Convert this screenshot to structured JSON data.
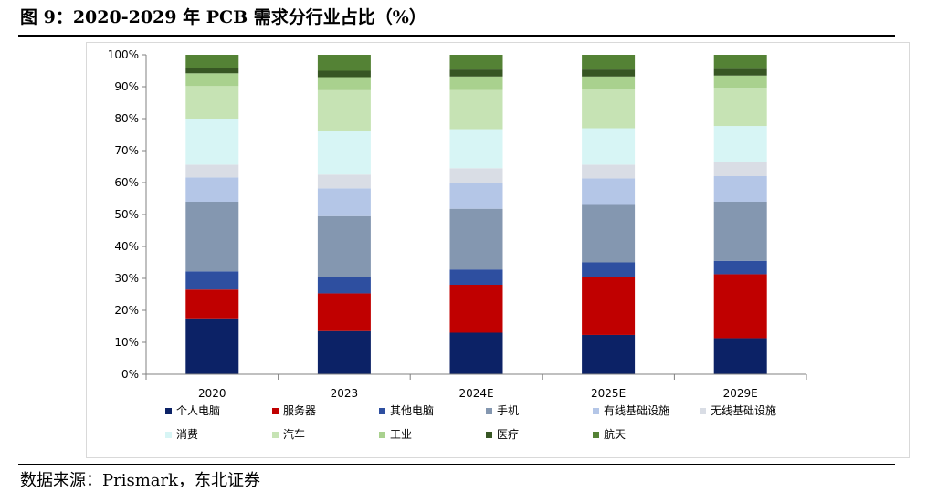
{
  "figure": {
    "title": "图 9：2020-2029 年 PCB 需求分行业占比（%）",
    "source": "数据来源：Prismark，东北证券"
  },
  "chart_data": {
    "type": "bar",
    "stacked": true,
    "categories": [
      "2020",
      "2023",
      "2024E",
      "2025E",
      "2029E"
    ],
    "ylim": [
      0,
      100
    ],
    "y_ticks": [
      "0%",
      "10%",
      "20%",
      "30%",
      "40%",
      "50%",
      "60%",
      "70%",
      "80%",
      "90%",
      "100%"
    ],
    "grid": false,
    "legend_position": "bottom",
    "series": [
      {
        "name": "个人电脑",
        "color": "#0c2266",
        "values": [
          17.5,
          13.5,
          13,
          12.3,
          11.3
        ]
      },
      {
        "name": "服务器",
        "color": "#c00000",
        "values": [
          9,
          11.8,
          15,
          18,
          20
        ]
      },
      {
        "name": "其他电脑",
        "color": "#2e4fa0",
        "values": [
          5.7,
          5.2,
          4.8,
          4.7,
          4.2
        ]
      },
      {
        "name": "手机",
        "color": "#8497b0",
        "values": [
          21.8,
          19,
          19,
          18,
          18.5
        ]
      },
      {
        "name": "有线基础设施",
        "color": "#b4c6e7",
        "values": [
          7.6,
          8.7,
          8.2,
          8.3,
          8
        ]
      },
      {
        "name": "无线基础设施",
        "color": "#d9dde5",
        "values": [
          4,
          4.3,
          4.5,
          4.3,
          4.5
        ]
      },
      {
        "name": "消费",
        "color": "#d7f5f5",
        "values": [
          14.4,
          13.5,
          12.2,
          11.4,
          11.2
        ]
      },
      {
        "name": "汽车",
        "color": "#c6e3b4",
        "values": [
          10.2,
          12.9,
          12.3,
          12.3,
          12
        ]
      },
      {
        "name": "工业",
        "color": "#a9d18e",
        "values": [
          4,
          4.1,
          4.2,
          3.9,
          3.8
        ]
      },
      {
        "name": "医疗",
        "color": "#375623",
        "values": [
          1.8,
          2,
          2.2,
          2.2,
          2.1
        ]
      },
      {
        "name": "航天",
        "color": "#548235",
        "values": [
          4,
          5,
          4.6,
          4.6,
          4.4
        ]
      }
    ]
  }
}
